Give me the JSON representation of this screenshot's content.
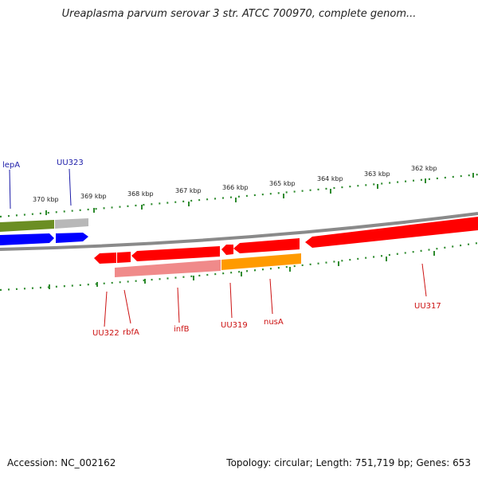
{
  "title": "Ureaplasma parvum serovar 3 str. ATCC 700970, complete genom...",
  "footer": {
    "accession": "Accession: NC_002162",
    "summary": "Topology: circular; Length: 751,719 bp; Genes: 653"
  },
  "colors": {
    "backbone": "#8a8a8a",
    "ticks": "#2e8b2e",
    "label_forward": "#1a1aa8",
    "label_reverse": "#cc1111",
    "red_gene": "#ff0000",
    "pink_gene": "#f08a8a",
    "orange_gene": "#ff9a00",
    "green_gene": "#6b8e23",
    "grey_gene": "#b8b8b8",
    "blue_gene": "#0000ff"
  },
  "scale": {
    "unit": "kbp",
    "labels": [
      "370 kbp",
      "369 kbp",
      "368 kbp",
      "367 kbp",
      "366 kbp",
      "365 kbp",
      "364 kbp",
      "363 kbp",
      "362 kbp"
    ]
  },
  "gene_labels": {
    "forward": [
      {
        "id": "lepA",
        "text": "lepA"
      },
      {
        "id": "UU323",
        "text": "UU323"
      }
    ],
    "reverse": [
      {
        "id": "UU322",
        "text": "UU322"
      },
      {
        "id": "rbfA",
        "text": "rbfA"
      },
      {
        "id": "infB",
        "text": "infB"
      },
      {
        "id": "UU319",
        "text": "UU319"
      },
      {
        "id": "nusA",
        "text": "nusA"
      },
      {
        "id": "UU317",
        "text": "UU317"
      }
    ]
  }
}
